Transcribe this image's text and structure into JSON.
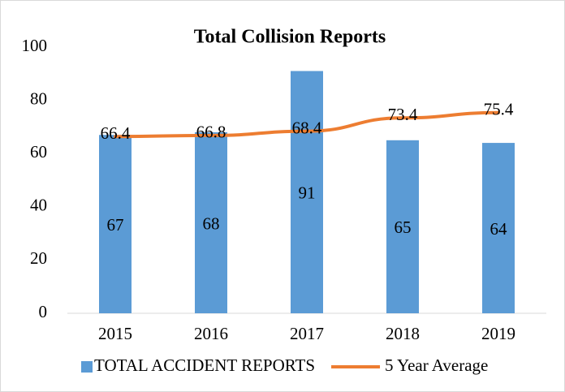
{
  "chart_data": {
    "type": "bar",
    "title": "Total Collision Reports",
    "categories": [
      "2015",
      "2016",
      "2017",
      "2018",
      "2019"
    ],
    "series": [
      {
        "name": "TOTAL ACCIDENT REPORTS",
        "type": "bar",
        "color": "#5b9bd5",
        "values": [
          67,
          68,
          91,
          65,
          64
        ]
      },
      {
        "name": "5 Year Average",
        "type": "line",
        "color": "#ed7d31",
        "values": [
          66.4,
          66.8,
          68.4,
          73.4,
          75.4
        ]
      }
    ],
    "ylim": [
      0,
      100
    ],
    "yticks": [
      0,
      20,
      40,
      60,
      80,
      100
    ],
    "grid": false,
    "legend": "bottom"
  }
}
